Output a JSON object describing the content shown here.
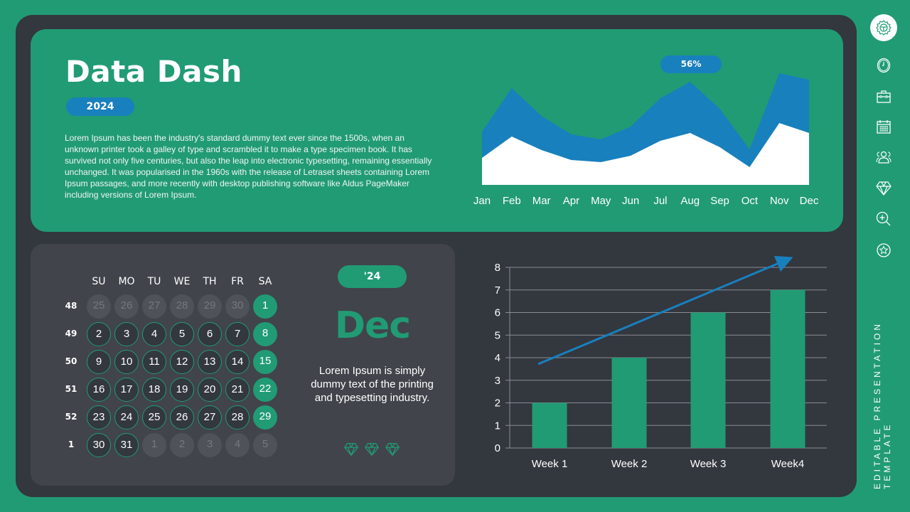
{
  "header": {
    "title": "Data Dash",
    "year_badge": "2024",
    "description": "Lorem Ipsum has been the industry's standard dummy text ever since the 1500s, when an unknown printer took a galley of type and scrambled it to make a type specimen book. It has survived not only five centuries, but also the leap into electronic typesetting, remaining essentially unchanged. It was popularised in the 1960s with the release of Letraset sheets containing Lorem Ipsum passages, and more recently with desktop publishing software like Aldus PageMaker including versions of Lorem Ipsum."
  },
  "area_chart": {
    "badge": "56%",
    "months": [
      "Jan",
      "Feb",
      "Mar",
      "Apr",
      "May",
      "Jun",
      "Jul",
      "Aug",
      "Sep",
      "Oct",
      "Nov",
      "Dec"
    ]
  },
  "calendar": {
    "days_of_week": [
      "SU",
      "MO",
      "TU",
      "WE",
      "TH",
      "FR",
      "SA"
    ],
    "weeks": [
      {
        "num": "48",
        "days": [
          {
            "d": "25",
            "t": "other"
          },
          {
            "d": "26",
            "t": "other"
          },
          {
            "d": "27",
            "t": "other"
          },
          {
            "d": "28",
            "t": "other"
          },
          {
            "d": "29",
            "t": "other"
          },
          {
            "d": "30",
            "t": "other"
          },
          {
            "d": "1",
            "t": "sat"
          }
        ]
      },
      {
        "num": "49",
        "days": [
          {
            "d": "2",
            "t": "cur"
          },
          {
            "d": "3",
            "t": "cur"
          },
          {
            "d": "4",
            "t": "cur"
          },
          {
            "d": "5",
            "t": "cur"
          },
          {
            "d": "6",
            "t": "cur"
          },
          {
            "d": "7",
            "t": "cur"
          },
          {
            "d": "8",
            "t": "sat"
          }
        ]
      },
      {
        "num": "50",
        "days": [
          {
            "d": "9",
            "t": "cur"
          },
          {
            "d": "10",
            "t": "cur"
          },
          {
            "d": "11",
            "t": "cur"
          },
          {
            "d": "12",
            "t": "cur"
          },
          {
            "d": "13",
            "t": "cur"
          },
          {
            "d": "14",
            "t": "cur"
          },
          {
            "d": "15",
            "t": "sat"
          }
        ]
      },
      {
        "num": "51",
        "days": [
          {
            "d": "16",
            "t": "cur"
          },
          {
            "d": "17",
            "t": "cur"
          },
          {
            "d": "18",
            "t": "cur"
          },
          {
            "d": "19",
            "t": "cur"
          },
          {
            "d": "20",
            "t": "cur"
          },
          {
            "d": "21",
            "t": "cur"
          },
          {
            "d": "22",
            "t": "sat"
          }
        ]
      },
      {
        "num": "52",
        "days": [
          {
            "d": "23",
            "t": "cur"
          },
          {
            "d": "24",
            "t": "cur"
          },
          {
            "d": "25",
            "t": "cur"
          },
          {
            "d": "26",
            "t": "cur"
          },
          {
            "d": "27",
            "t": "cur"
          },
          {
            "d": "28",
            "t": "cur"
          },
          {
            "d": "29",
            "t": "sat"
          }
        ]
      },
      {
        "num": "1",
        "days": [
          {
            "d": "30",
            "t": "cur"
          },
          {
            "d": "31",
            "t": "cur"
          },
          {
            "d": "1",
            "t": "other"
          },
          {
            "d": "2",
            "t": "other"
          },
          {
            "d": "3",
            "t": "other"
          },
          {
            "d": "4",
            "t": "other"
          },
          {
            "d": "5",
            "t": "other"
          }
        ]
      }
    ],
    "year_badge": "'24",
    "month": "Dec",
    "description": "Lorem Ipsum is simply dummy text of the printing and typesetting industry."
  },
  "sidebar": {
    "icons": [
      "gear-icon",
      "clock-icon",
      "briefcase-icon",
      "calendar-icon",
      "users-icon",
      "diamond-icon",
      "zoom-in-icon",
      "star-icon"
    ],
    "vertical_text_line1": "EDITABLE PRESENTATION",
    "vertical_text_line2": "TEMPLATE"
  },
  "colors": {
    "green": "#219b74",
    "dark": "#33373e",
    "panel": "#41444b",
    "blue": "#1880bd",
    "white": "#ffffff"
  },
  "chart_data": [
    {
      "type": "area",
      "title": "",
      "annotation": "56%",
      "categories": [
        "Jan",
        "Feb",
        "Mar",
        "Apr",
        "May",
        "Jun",
        "Jul",
        "Aug",
        "Sep",
        "Oct",
        "Nov",
        "Dec"
      ],
      "series": [
        {
          "name": "Series 1 (white)",
          "values": [
            38,
            68,
            49,
            35,
            32,
            41,
            62,
            73,
            53,
            25,
            87,
            73
          ]
        },
        {
          "name": "Series 2 (blue, stacked top)",
          "values": [
            75,
            136,
            97,
            71,
            64,
            82,
            122,
            145,
            107,
            50,
            157,
            148
          ]
        }
      ],
      "xlabel": "",
      "ylabel": "",
      "grid": false,
      "legend": "none"
    },
    {
      "type": "bar",
      "title": "",
      "categories": [
        "Week 1",
        "Week 2",
        "Week 3",
        "Week4"
      ],
      "values": [
        2,
        4,
        6,
        7
      ],
      "trendline": {
        "from": 3.7,
        "to": 8.4,
        "style": "arrow"
      },
      "xlabel": "",
      "ylabel": "",
      "ylim": [
        0,
        8
      ],
      "yticks": [
        0,
        1,
        2,
        3,
        4,
        5,
        6,
        7,
        8
      ],
      "grid": true
    }
  ]
}
